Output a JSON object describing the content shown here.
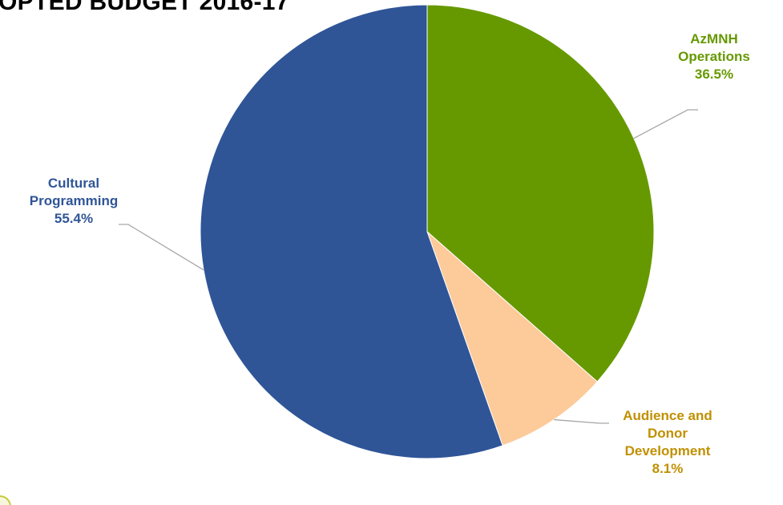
{
  "chart_data": {
    "type": "pie",
    "title": "OPTED BUDGET 2016-17",
    "slices": [
      {
        "label_lines": [
          "AzMNH",
          "Operations"
        ],
        "percent_label": "36.5%",
        "value": 36.5,
        "color": "#669900",
        "label_color": "#669900"
      },
      {
        "label_lines": [
          "Audience and",
          "Donor",
          "Development"
        ],
        "percent_label": "8.1%",
        "value": 8.1,
        "color": "#fdca9a",
        "label_color": "#c09000"
      },
      {
        "label_lines": [
          "Cultural",
          "Programming"
        ],
        "percent_label": "55.4%",
        "value": 55.4,
        "color": "#2f5597",
        "label_color": "#2f5597"
      }
    ],
    "start_angle_deg": 0,
    "direction": "clockwise",
    "legend": "none"
  }
}
